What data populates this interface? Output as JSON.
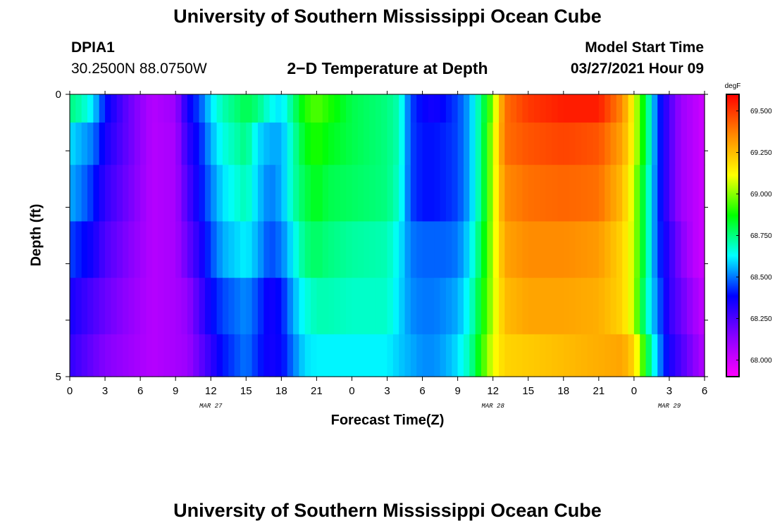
{
  "header": {
    "title": "University of Southern Mississippi Ocean Cube",
    "station_id": "DPIA1",
    "station_coords": "30.2500N  88.0750W",
    "plot_title": "2−D Temperature at Depth",
    "model_start_label": "Model Start Time",
    "model_start_value": "03/27/2021 Hour 09"
  },
  "footer": {
    "title": "University of Southern Mississippi Ocean Cube"
  },
  "chart_data": {
    "type": "heatmap",
    "title": "2−D Temperature at Depth",
    "xlabel": "Forecast Time(Z)",
    "ylabel": "Depth (ft)",
    "x_tick_labels": [
      "0",
      "3",
      "6",
      "9",
      "12",
      "15",
      "18",
      "21",
      "0",
      "3",
      "6",
      "9",
      "12",
      "15",
      "18",
      "21",
      "0",
      "3",
      "6"
    ],
    "x_date_labels": [
      {
        "text": "MAR 27",
        "hour": 12
      },
      {
        "text": "MAR 28",
        "hour": 36
      },
      {
        "text": "MAR 29",
        "hour": 51
      }
    ],
    "x_range_hours": [
      0,
      54
    ],
    "y_tick_labels": [
      "0",
      "5"
    ],
    "y_range_ft": [
      0,
      5
    ],
    "colorbar": {
      "unit": "degF",
      "range": [
        67.9,
        69.6
      ],
      "labels": [
        "69.500",
        "69.250",
        "69.000",
        "68.750",
        "68.500",
        "68.250",
        "68.000"
      ],
      "colors": [
        "#ff00ff",
        "#8800ff",
        "#0000ff",
        "#00ffff",
        "#00ff00",
        "#ffff00",
        "#ff8800",
        "#ff0000"
      ]
    },
    "depth_layers_ft": [
      0.25,
      0.75,
      1.75,
      2.75,
      3.75,
      4.75
    ],
    "time_nodes_hours": [
      0,
      1,
      2,
      3,
      5,
      7,
      9,
      10,
      11,
      12,
      13,
      15,
      16,
      17,
      18,
      19,
      20,
      21,
      22,
      24,
      27,
      28,
      29,
      30,
      31,
      32,
      33,
      34,
      35,
      36,
      37,
      39,
      42,
      45,
      47,
      48,
      49,
      50,
      51,
      52,
      53,
      54
    ],
    "temperature_degF": [
      [
        68.75,
        68.7,
        68.6,
        68.4,
        68.2,
        68.05,
        68.1,
        68.35,
        68.45,
        68.6,
        68.7,
        68.8,
        68.75,
        68.65,
        68.6,
        68.75,
        68.9,
        68.95,
        68.9,
        68.8,
        68.75,
        68.7,
        68.45,
        68.38,
        68.35,
        68.4,
        68.45,
        68.55,
        68.75,
        69.0,
        69.4,
        69.5,
        69.55,
        69.55,
        69.35,
        69.1,
        68.8,
        68.45,
        68.25,
        68.1,
        68.05,
        68.0
      ],
      [
        68.6,
        68.55,
        68.5,
        68.35,
        68.2,
        68.05,
        68.08,
        68.3,
        68.4,
        68.55,
        68.65,
        68.75,
        68.6,
        68.55,
        68.55,
        68.7,
        68.85,
        68.9,
        68.85,
        68.8,
        68.75,
        68.7,
        68.45,
        68.4,
        68.4,
        68.42,
        68.45,
        68.55,
        68.75,
        69.05,
        69.4,
        69.45,
        69.48,
        69.45,
        69.3,
        69.1,
        68.8,
        68.45,
        68.25,
        68.1,
        68.05,
        68.0
      ],
      [
        68.55,
        68.5,
        68.42,
        68.3,
        68.18,
        68.05,
        68.08,
        68.25,
        68.38,
        68.5,
        68.6,
        68.7,
        68.58,
        68.5,
        68.55,
        68.7,
        68.8,
        68.85,
        68.8,
        68.78,
        68.75,
        68.68,
        68.45,
        68.4,
        68.4,
        68.42,
        68.45,
        68.55,
        68.75,
        69.05,
        69.35,
        69.4,
        69.42,
        69.4,
        69.25,
        69.05,
        68.75,
        68.45,
        68.25,
        68.1,
        68.05,
        68.0
      ],
      [
        68.45,
        68.4,
        68.35,
        68.25,
        68.15,
        68.05,
        68.08,
        68.2,
        68.32,
        68.45,
        68.55,
        68.62,
        68.55,
        68.45,
        68.5,
        68.62,
        68.75,
        68.78,
        68.75,
        68.72,
        68.7,
        68.62,
        68.5,
        68.48,
        68.48,
        68.48,
        68.5,
        68.6,
        68.8,
        69.05,
        69.3,
        69.35,
        69.35,
        69.32,
        69.2,
        69.05,
        68.75,
        68.45,
        68.3,
        68.15,
        68.05,
        68.0
      ],
      [
        68.35,
        68.3,
        68.25,
        68.2,
        68.12,
        68.05,
        68.08,
        68.12,
        68.25,
        68.38,
        68.45,
        68.52,
        68.45,
        68.35,
        68.4,
        68.55,
        68.65,
        68.7,
        68.7,
        68.68,
        68.68,
        68.6,
        68.52,
        68.5,
        68.5,
        68.52,
        68.55,
        68.65,
        68.85,
        69.05,
        69.25,
        69.3,
        69.3,
        69.28,
        69.2,
        69.05,
        68.7,
        68.5,
        68.3,
        68.2,
        68.1,
        68.02
      ],
      [
        68.3,
        68.25,
        68.2,
        68.15,
        68.1,
        68.05,
        68.08,
        68.1,
        68.2,
        68.3,
        68.4,
        68.5,
        68.42,
        68.35,
        68.38,
        68.5,
        68.6,
        68.62,
        68.62,
        68.62,
        68.62,
        68.58,
        68.55,
        68.52,
        68.52,
        68.55,
        68.6,
        68.7,
        68.9,
        69.1,
        69.2,
        69.22,
        69.25,
        69.28,
        69.3,
        69.2,
        68.85,
        68.55,
        68.35,
        68.25,
        68.15,
        68.05
      ]
    ]
  }
}
